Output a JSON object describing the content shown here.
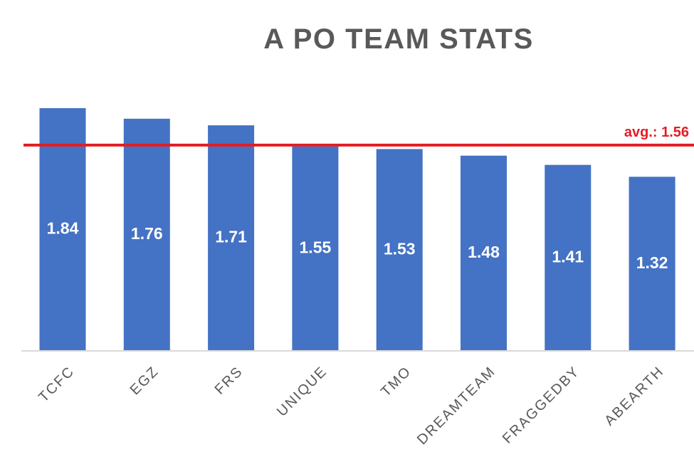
{
  "chart_data": {
    "type": "bar",
    "title": "A PO TEAM STATS",
    "categories": [
      "TCFC",
      "EGZ",
      "FRS",
      "UNIQUE",
      "TMO",
      "DREAMTEAM",
      "FRAGGEDBY",
      "ABEARTH"
    ],
    "values": [
      1.84,
      1.76,
      1.71,
      1.55,
      1.53,
      1.48,
      1.41,
      1.32
    ],
    "data_labels": [
      "1.84",
      "1.76",
      "1.71",
      "1.55",
      "1.53",
      "1.48",
      "1.41",
      "1.32"
    ],
    "reference_line": {
      "value": 1.56,
      "label": "avg.: 1.56",
      "color": "#e31c23"
    },
    "bar_color": "#4472C4",
    "ylim": [
      0,
      1.84
    ],
    "xlabel": "",
    "ylabel": "",
    "grid": false,
    "legend": "none"
  }
}
